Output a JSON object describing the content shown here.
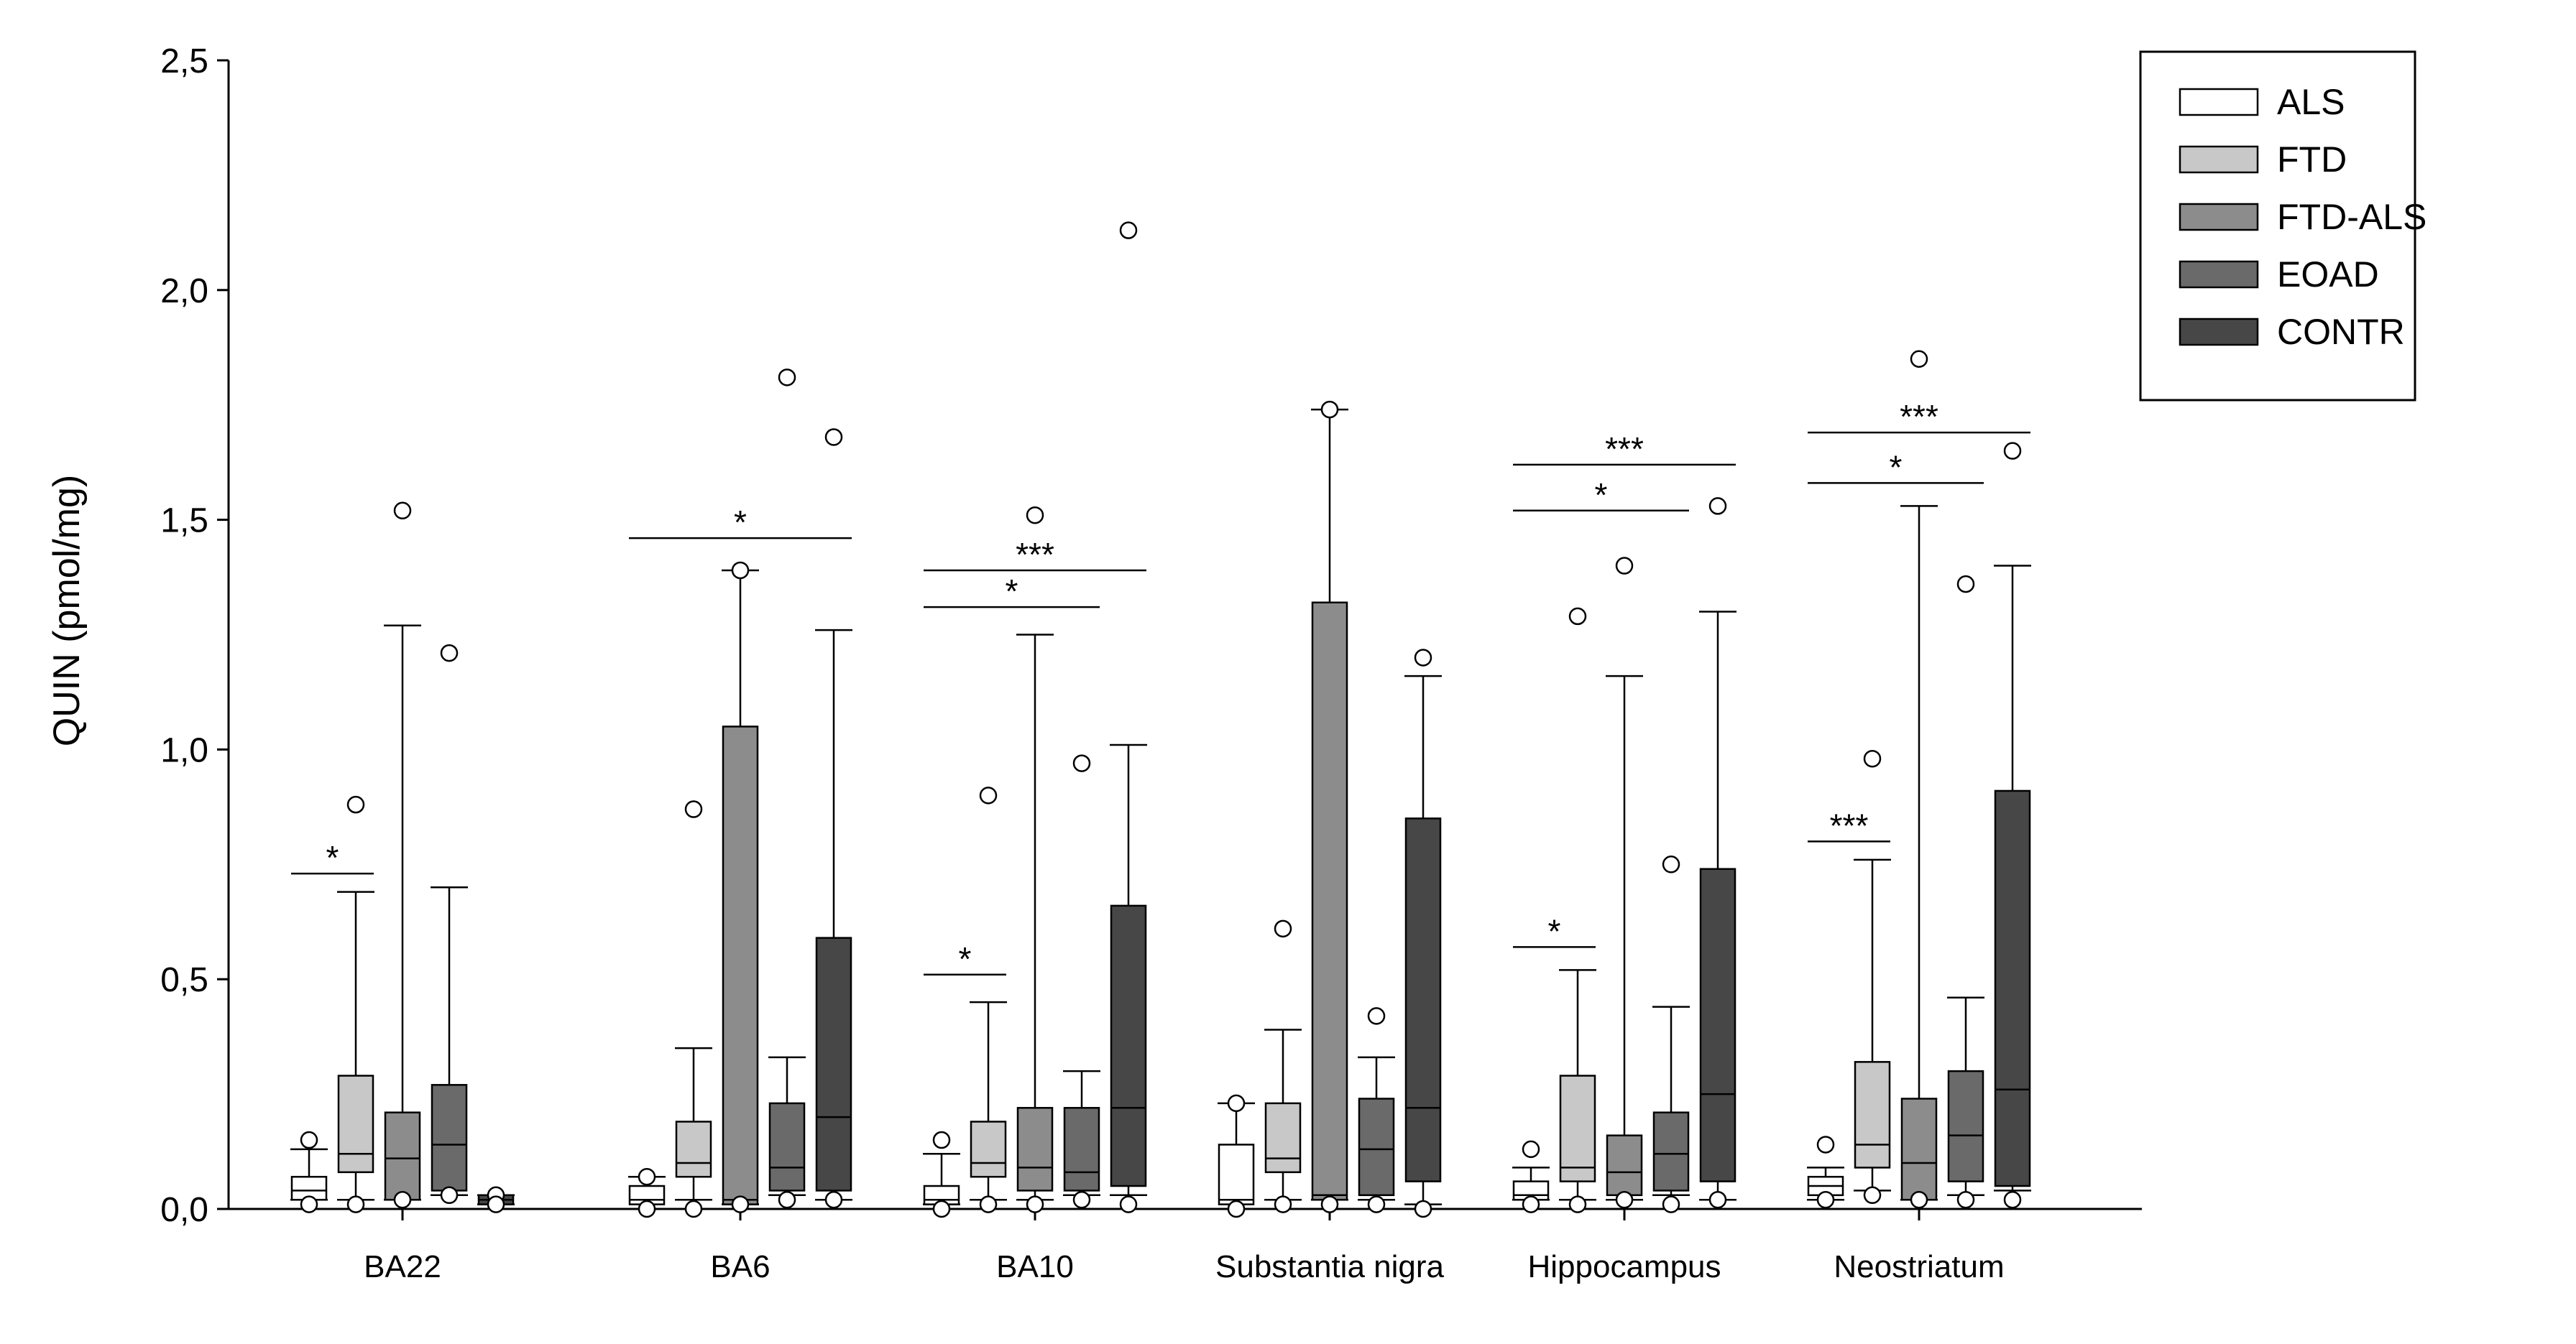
{
  "chart_data": {
    "type": "boxplot",
    "ylabel": "QUIN (pmol/mg)",
    "ylim": [
      0,
      2.5
    ],
    "yticks": [
      "0,0",
      "0,5",
      "1,0",
      "1,5",
      "2,0",
      "2,5"
    ],
    "categories": [
      "BA22",
      "BA6",
      "BA10",
      "Substantia nigra",
      "Hippocampus",
      "Neostriatum"
    ],
    "legend": {
      "position": "top-right",
      "entries": [
        {
          "name": "ALS",
          "color": "#ffffff"
        },
        {
          "name": "FTD",
          "color": "#c8c8c8"
        },
        {
          "name": "FTD-ALS",
          "color": "#8c8c8c"
        },
        {
          "name": "EOAD",
          "color": "#6a6a6a"
        },
        {
          "name": "CONTR",
          "color": "#474747"
        }
      ]
    },
    "groups": [
      {
        "category": "BA22",
        "boxes": [
          {
            "series": "ALS",
            "low": 0.02,
            "q1": 0.02,
            "median": 0.04,
            "q3": 0.07,
            "high": 0.13,
            "outliers": [
              0.15,
              0.01
            ]
          },
          {
            "series": "FTD",
            "low": 0.02,
            "q1": 0.08,
            "median": 0.12,
            "q3": 0.29,
            "high": 0.69,
            "outliers": [
              0.88,
              0.01
            ]
          },
          {
            "series": "FTD-ALS",
            "low": 0.02,
            "q1": 0.02,
            "median": 0.11,
            "q3": 0.21,
            "high": 1.27,
            "outliers": [
              1.52,
              0.02
            ]
          },
          {
            "series": "EOAD",
            "low": 0.03,
            "q1": 0.04,
            "median": 0.14,
            "q3": 0.27,
            "high": 0.7,
            "outliers": [
              1.21,
              0.03
            ]
          },
          {
            "series": "CONTR",
            "low": 0.01,
            "q1": 0.01,
            "median": 0.02,
            "q3": 0.03,
            "high": 0.03,
            "outliers": [
              0.03,
              0.01
            ]
          }
        ]
      },
      {
        "category": "BA6",
        "boxes": [
          {
            "series": "ALS",
            "low": 0.0,
            "q1": 0.01,
            "median": 0.02,
            "q3": 0.05,
            "high": 0.07,
            "outliers": [
              0.07,
              0.0
            ]
          },
          {
            "series": "FTD",
            "low": 0.02,
            "q1": 0.07,
            "median": 0.1,
            "q3": 0.19,
            "high": 0.35,
            "outliers": [
              0.87,
              0.0
            ]
          },
          {
            "series": "FTD-ALS",
            "low": 0.01,
            "q1": 0.01,
            "median": 0.02,
            "q3": 1.05,
            "high": 1.39,
            "outliers": [
              1.39,
              0.01
            ]
          },
          {
            "series": "EOAD",
            "low": 0.03,
            "q1": 0.04,
            "median": 0.09,
            "q3": 0.23,
            "high": 0.33,
            "outliers": [
              1.81,
              0.02
            ]
          },
          {
            "series": "CONTR",
            "low": 0.02,
            "q1": 0.04,
            "median": 0.2,
            "q3": 0.59,
            "high": 1.26,
            "outliers": [
              1.68,
              0.02
            ]
          }
        ]
      },
      {
        "category": "BA10",
        "boxes": [
          {
            "series": "ALS",
            "low": 0.01,
            "q1": 0.01,
            "median": 0.02,
            "q3": 0.05,
            "high": 0.12,
            "outliers": [
              0.15,
              0.0
            ]
          },
          {
            "series": "FTD",
            "low": 0.02,
            "q1": 0.07,
            "median": 0.1,
            "q3": 0.19,
            "high": 0.45,
            "outliers": [
              0.9,
              0.01
            ]
          },
          {
            "series": "FTD-ALS",
            "low": 0.02,
            "q1": 0.04,
            "median": 0.09,
            "q3": 0.22,
            "high": 1.25,
            "outliers": [
              1.51,
              0.01
            ]
          },
          {
            "series": "EOAD",
            "low": 0.03,
            "q1": 0.04,
            "median": 0.08,
            "q3": 0.22,
            "high": 0.3,
            "outliers": [
              0.97,
              0.02
            ]
          },
          {
            "series": "CONTR",
            "low": 0.03,
            "q1": 0.05,
            "median": 0.22,
            "q3": 0.66,
            "high": 1.01,
            "outliers": [
              2.13,
              0.01
            ]
          }
        ]
      },
      {
        "category": "Substantia nigra",
        "boxes": [
          {
            "series": "ALS",
            "low": 0.0,
            "q1": 0.01,
            "median": 0.02,
            "q3": 0.14,
            "high": 0.23,
            "outliers": [
              0.23,
              0.0
            ]
          },
          {
            "series": "FTD",
            "low": 0.02,
            "q1": 0.08,
            "median": 0.11,
            "q3": 0.23,
            "high": 0.39,
            "outliers": [
              0.61,
              0.01
            ]
          },
          {
            "series": "FTD-ALS",
            "low": 0.02,
            "q1": 0.02,
            "median": 0.03,
            "q3": 1.32,
            "high": 1.74,
            "outliers": [
              1.74,
              0.01
            ]
          },
          {
            "series": "EOAD",
            "low": 0.02,
            "q1": 0.03,
            "median": 0.13,
            "q3": 0.24,
            "high": 0.33,
            "outliers": [
              0.42,
              0.01
            ]
          },
          {
            "series": "CONTR",
            "low": 0.01,
            "q1": 0.06,
            "median": 0.22,
            "q3": 0.85,
            "high": 1.16,
            "outliers": [
              1.2,
              0.0
            ]
          }
        ]
      },
      {
        "category": "Hippocampus",
        "boxes": [
          {
            "series": "ALS",
            "low": 0.02,
            "q1": 0.02,
            "median": 0.03,
            "q3": 0.06,
            "high": 0.09,
            "outliers": [
              0.13,
              0.01
            ]
          },
          {
            "series": "FTD",
            "low": 0.02,
            "q1": 0.06,
            "median": 0.09,
            "q3": 0.29,
            "high": 0.52,
            "outliers": [
              1.29,
              0.01
            ]
          },
          {
            "series": "FTD-ALS",
            "low": 0.02,
            "q1": 0.03,
            "median": 0.08,
            "q3": 0.16,
            "high": 1.16,
            "outliers": [
              1.4,
              0.02
            ]
          },
          {
            "series": "EOAD",
            "low": 0.03,
            "q1": 0.04,
            "median": 0.12,
            "q3": 0.21,
            "high": 0.44,
            "outliers": [
              0.75,
              0.01
            ]
          },
          {
            "series": "CONTR",
            "low": 0.02,
            "q1": 0.06,
            "median": 0.25,
            "q3": 0.74,
            "high": 1.3,
            "outliers": [
              1.53,
              0.02
            ]
          }
        ]
      },
      {
        "category": "Neostriatum",
        "boxes": [
          {
            "series": "ALS",
            "low": 0.02,
            "q1": 0.03,
            "median": 0.05,
            "q3": 0.07,
            "high": 0.09,
            "outliers": [
              0.14,
              0.02
            ]
          },
          {
            "series": "FTD",
            "low": 0.04,
            "q1": 0.09,
            "median": 0.14,
            "q3": 0.32,
            "high": 0.76,
            "outliers": [
              0.98,
              0.03
            ]
          },
          {
            "series": "FTD-ALS",
            "low": 0.02,
            "q1": 0.02,
            "median": 0.1,
            "q3": 0.24,
            "high": 1.53,
            "outliers": [
              1.85,
              0.02
            ]
          },
          {
            "series": "EOAD",
            "low": 0.03,
            "q1": 0.06,
            "median": 0.16,
            "q3": 0.3,
            "high": 0.46,
            "outliers": [
              1.36,
              0.02
            ]
          },
          {
            "series": "CONTR",
            "low": 0.04,
            "q1": 0.05,
            "median": 0.26,
            "q3": 0.91,
            "high": 1.4,
            "outliers": [
              1.65,
              0.02
            ]
          }
        ]
      }
    ],
    "significance": [
      {
        "category": "BA22",
        "from": 0,
        "to": 1,
        "y": 0.73,
        "label": "*"
      },
      {
        "category": "BA6",
        "from": 0,
        "to": 4,
        "y": 1.46,
        "label": "*"
      },
      {
        "category": "BA10",
        "from": 0,
        "to": 1,
        "y": 0.51,
        "label": "*"
      },
      {
        "category": "BA10",
        "from": 0,
        "to": 3,
        "y": 1.31,
        "label": "*"
      },
      {
        "category": "BA10",
        "from": 0,
        "to": 4,
        "y": 1.39,
        "label": "***"
      },
      {
        "category": "Hippocampus",
        "from": 0,
        "to": 1,
        "y": 0.57,
        "label": "*"
      },
      {
        "category": "Hippocampus",
        "from": 0,
        "to": 3,
        "y": 1.52,
        "label": "*"
      },
      {
        "category": "Hippocampus",
        "from": 0,
        "to": 4,
        "y": 1.62,
        "label": "***"
      },
      {
        "category": "Neostriatum",
        "from": 0,
        "to": 1,
        "y": 0.8,
        "label": "***"
      },
      {
        "category": "Neostriatum",
        "from": 0,
        "to": 3,
        "y": 1.58,
        "label": "*"
      },
      {
        "category": "Neostriatum",
        "from": 0,
        "to": 4,
        "y": 1.69,
        "label": "***"
      }
    ]
  }
}
